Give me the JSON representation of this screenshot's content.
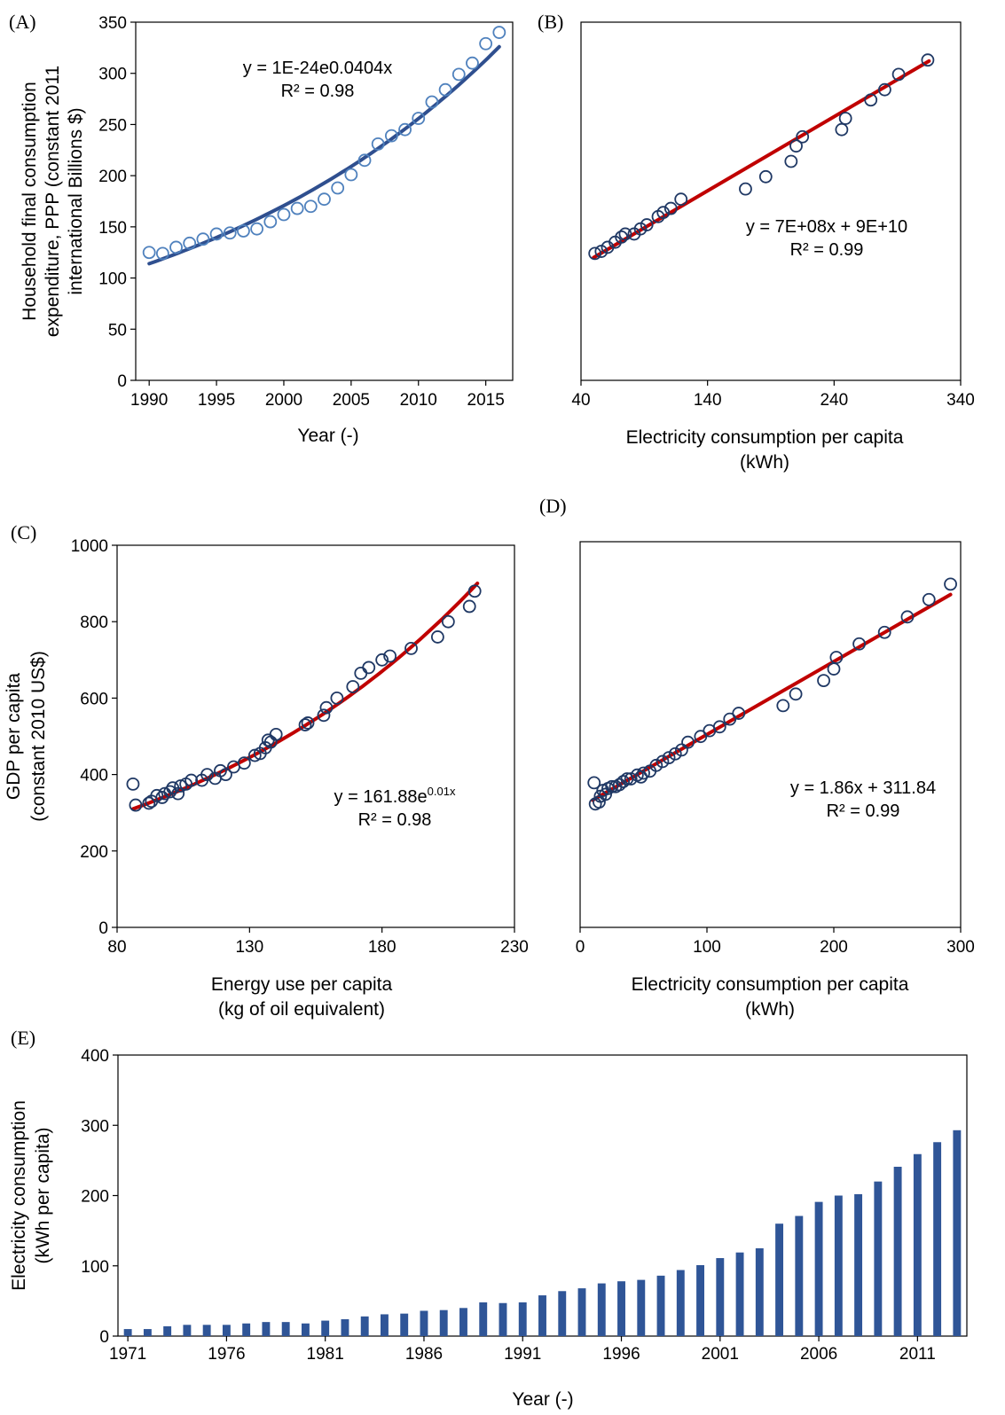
{
  "chart_data": [
    {
      "id": "A",
      "type": "scatter",
      "panel_label": "(A)",
      "xlabel": "Year (-)",
      "ylabel": [
        "Household final consumption",
        "expenditure, PPP (constant 2011",
        "international Billions $)"
      ],
      "xlim": [
        1989,
        2017
      ],
      "ylim": [
        0,
        350
      ],
      "xticks": [
        1990,
        1995,
        2000,
        2005,
        2010,
        2015
      ],
      "yticks": [
        0,
        50,
        100,
        150,
        200,
        250,
        300,
        350
      ],
      "marker_color": "#4f81bd",
      "trend_color": "#2f4f8f",
      "trend": {
        "kind": "exponential",
        "a": 114,
        "b": 0.0404,
        "x0": 1990
      },
      "equation": {
        "text": "y = 1E-24e0.0404x",
        "r2": "R² = 0.98"
      },
      "x": [
        1990,
        1991,
        1992,
        1993,
        1994,
        1995,
        1996,
        1997,
        1998,
        1999,
        2000,
        2001,
        2002,
        2003,
        2004,
        2005,
        2006,
        2007,
        2008,
        2009,
        2010,
        2011,
        2012,
        2013,
        2014,
        2015,
        2016
      ],
      "y": [
        125,
        124,
        130,
        134,
        138,
        143,
        144,
        146,
        148,
        155,
        162,
        168,
        170,
        177,
        188,
        201,
        215,
        231,
        239,
        245,
        256,
        272,
        284,
        299,
        310,
        329,
        340
      ]
    },
    {
      "id": "B",
      "type": "scatter",
      "panel_label": "(B)",
      "xlabel": [
        "Electricity consumption per capita",
        "(kWh)"
      ],
      "xlim": [
        40,
        340
      ],
      "ylim": [
        0,
        350
      ],
      "xticks": [
        40,
        140,
        240,
        340
      ],
      "yticks": [],
      "marker_color": "#1f3864",
      "trend_color": "#c00000",
      "trend": {
        "kind": "linear",
        "x1": 50,
        "y1": 120,
        "x2": 315,
        "y2": 312
      },
      "equation": {
        "text": "y = 7E+08x + 9E+10",
        "r2": "R² = 0.99"
      },
      "x": [
        51,
        56,
        61,
        67,
        72,
        75,
        82,
        87,
        92,
        101,
        105,
        111,
        119,
        170,
        186,
        206,
        210,
        215,
        246,
        249,
        269,
        280,
        291,
        314
      ],
      "y": [
        124,
        126,
        130,
        135,
        140,
        143,
        143,
        148,
        152,
        160,
        164,
        168,
        177,
        187,
        199,
        214,
        229,
        238,
        245,
        256,
        274,
        284,
        299,
        313
      ]
    },
    {
      "id": "C",
      "type": "scatter",
      "panel_label": "(C)",
      "xlabel": [
        "Energy use per capita",
        "(kg of oil equivalent)"
      ],
      "ylabel": [
        "GDP per capita",
        "(constant 2010 US$)"
      ],
      "xlim": [
        80,
        230
      ],
      "ylim": [
        0,
        1000
      ],
      "xticks": [
        80,
        130,
        180,
        230
      ],
      "yticks": [
        0,
        200,
        400,
        600,
        800,
        1000
      ],
      "marker_color": "#1f3864",
      "trend_color": "#c00000",
      "trend": {
        "kind": "exponential",
        "a": 310,
        "b": 0.0082,
        "x0": 86,
        "xend": 216
      },
      "equation": {
        "text": "y = 161.88e",
        "sup": "0.01x",
        "r2": "R² = 0.98"
      },
      "x": [
        86,
        87,
        92,
        93,
        95,
        97,
        98,
        100,
        101,
        103,
        104,
        106,
        108,
        112,
        114,
        117,
        119,
        121,
        124,
        128,
        132,
        134,
        136,
        137,
        138,
        140,
        151,
        152,
        158,
        159,
        163,
        169,
        172,
        175,
        180,
        183,
        191,
        201,
        205,
        213,
        215
      ],
      "y": [
        375,
        320,
        325,
        330,
        345,
        340,
        350,
        355,
        365,
        350,
        370,
        375,
        385,
        385,
        400,
        390,
        410,
        400,
        420,
        430,
        450,
        455,
        470,
        490,
        485,
        505,
        530,
        535,
        555,
        575,
        600,
        630,
        665,
        680,
        700,
        710,
        730,
        760,
        800,
        840,
        880
      ]
    },
    {
      "id": "D",
      "type": "scatter",
      "panel_label": "(D)",
      "xlabel": [
        "Electricity consumption per capita",
        "(kWh)"
      ],
      "xlim": [
        0,
        300
      ],
      "ylim": [
        0,
        1000
      ],
      "xticks": [
        0,
        100,
        200,
        300
      ],
      "yticks": [],
      "marker_color": "#1f3864",
      "trend_color": "#c00000",
      "trend": {
        "kind": "linear",
        "x1": 10,
        "y1": 330,
        "x2": 292,
        "y2": 863
      },
      "equation": {
        "text": "y = 1.86x + 311.84",
        "r2": "R² = 0.99"
      },
      "x": [
        11,
        12,
        15,
        16,
        18,
        20,
        22,
        25,
        28,
        31,
        34,
        37,
        40,
        45,
        48,
        50,
        55,
        60,
        65,
        70,
        75,
        80,
        85,
        95,
        102,
        110,
        118,
        125,
        160,
        170,
        192,
        200,
        202,
        220,
        240,
        258,
        275,
        292
      ],
      "y": [
        375,
        320,
        325,
        340,
        355,
        345,
        360,
        365,
        365,
        370,
        378,
        385,
        385,
        395,
        390,
        400,
        405,
        420,
        430,
        440,
        450,
        460,
        480,
        495,
        510,
        520,
        540,
        555,
        575,
        605,
        640,
        670,
        700,
        735,
        765,
        805,
        850,
        890
      ]
    },
    {
      "id": "E",
      "type": "bar",
      "panel_label": "(E)",
      "xlabel": "Year (-)",
      "ylabel": [
        "Electricity  consumption",
        "(kWh per capita)"
      ],
      "ylim": [
        0,
        400
      ],
      "yticks": [
        0,
        100,
        200,
        300,
        400
      ],
      "xtick_labels": [
        "1971",
        "1976",
        "1981",
        "1986",
        "1991",
        "1996",
        "2001",
        "2006",
        "2011"
      ],
      "bar_color": "#2f5597",
      "categories": [
        "1971",
        "1972",
        "1973",
        "1974",
        "1975",
        "1976",
        "1977",
        "1978",
        "1979",
        "1980",
        "1981",
        "1982",
        "1983",
        "1984",
        "1985",
        "1986",
        "1987",
        "1988",
        "1989",
        "1990",
        "1991",
        "1992",
        "1993",
        "1994",
        "1995",
        "1996",
        "1997",
        "1998",
        "1999",
        "2000",
        "2001",
        "2002",
        "2003",
        "2004",
        "2005",
        "2006",
        "2007",
        "2008",
        "2009",
        "2010",
        "2011",
        "2012",
        "2013"
      ],
      "values": [
        10,
        10,
        14,
        16,
        16,
        16,
        18,
        20,
        20,
        18,
        22,
        24,
        28,
        31,
        32,
        36,
        37,
        40,
        48,
        47,
        48,
        58,
        64,
        68,
        75,
        78,
        80,
        86,
        94,
        101,
        111,
        119,
        125,
        160,
        171,
        191,
        200,
        202,
        220,
        241,
        259,
        276,
        293
      ]
    }
  ]
}
